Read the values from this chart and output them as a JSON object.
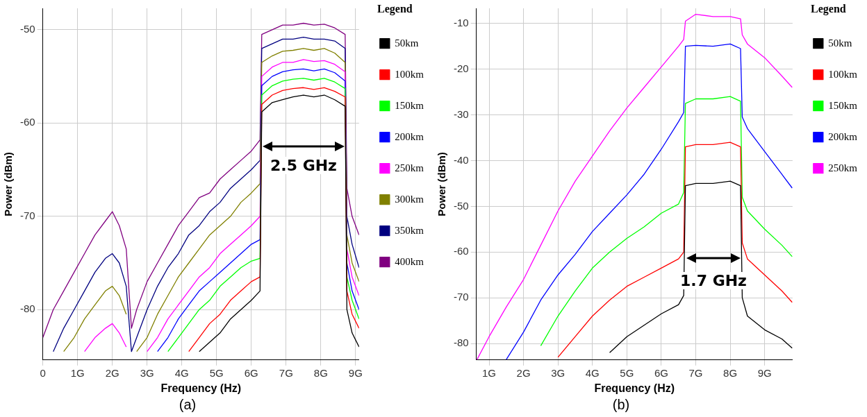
{
  "chart_data": [
    {
      "type": "line",
      "xlabel": "Frequency (Hz)",
      "ylabel": "Power (dBm)",
      "legend_title": "Legend",
      "legend": "right",
      "grid": true,
      "marker": "none",
      "line_style": "solid",
      "xlim": [
        0,
        9.1
      ],
      "ylim": [
        -85.4,
        -47.7
      ],
      "xticks": [
        0,
        {
          "value": 1,
          "label": "1G"
        },
        {
          "value": 2,
          "label": "2G"
        },
        {
          "value": 3,
          "label": "3G"
        },
        {
          "value": 4,
          "label": "4G"
        },
        {
          "value": 5,
          "label": "5G"
        },
        {
          "value": 6,
          "label": "6G"
        },
        {
          "value": 7,
          "label": "7G"
        },
        {
          "value": 8,
          "label": "8G"
        },
        {
          "value": 9,
          "label": "9G"
        }
      ],
      "yticks": [
        -80,
        -70,
        -60,
        -50
      ],
      "annotations": [
        "2.5 GHz",
        "(a)"
      ],
      "x": [
        0,
        0.3,
        0.6,
        0.9,
        1.2,
        1.5,
        1.8,
        2,
        2.2,
        2.4,
        2.55,
        2.7,
        3,
        3.3,
        3.6,
        3.9,
        4.2,
        4.5,
        4.8,
        5.1,
        5.4,
        5.7,
        6,
        6.25,
        6.3,
        6.6,
        6.9,
        7.2,
        7.5,
        7.8,
        8.1,
        8.4,
        8.7,
        8.75,
        8.9,
        9.1
      ],
      "series": [
        {
          "name": "50km",
          "color": "#000000",
          "values": [
            null,
            null,
            null,
            null,
            null,
            null,
            null,
            null,
            null,
            null,
            null,
            null,
            null,
            null,
            null,
            null,
            null,
            -84.5,
            -83.5,
            -82.5,
            -81,
            -80,
            -79,
            -78,
            -58.8,
            -57.8,
            -57.5,
            -57.2,
            -57,
            -57.2,
            -57,
            -57.5,
            -58.2,
            -80,
            -82.5,
            -84
          ]
        },
        {
          "name": "100km",
          "color": "#ff0000",
          "values": [
            null,
            null,
            null,
            null,
            null,
            null,
            null,
            null,
            null,
            null,
            null,
            null,
            null,
            null,
            null,
            null,
            -84.5,
            -83,
            -81.5,
            -80.5,
            -79,
            -78,
            -77,
            -76.5,
            -58,
            -57,
            -56.5,
            -56.3,
            -56.2,
            -56.4,
            -56.2,
            -56.6,
            -57.2,
            -78,
            -80.5,
            -82
          ]
        },
        {
          "name": "150km",
          "color": "#00ff00",
          "values": [
            null,
            null,
            null,
            null,
            null,
            null,
            null,
            null,
            null,
            null,
            null,
            null,
            null,
            null,
            -84.5,
            -83,
            -81.5,
            -80,
            -79,
            -77.5,
            -76.5,
            -75.5,
            -74.8,
            -74.5,
            -57,
            -56,
            -55.5,
            -55.3,
            -55.2,
            -55.4,
            -55.2,
            -55.6,
            -56.3,
            -76.5,
            -79,
            -81
          ]
        },
        {
          "name": "200km",
          "color": "#0000ff",
          "values": [
            null,
            null,
            null,
            null,
            null,
            null,
            null,
            null,
            null,
            null,
            null,
            null,
            null,
            -84.5,
            -83,
            -81,
            -79.5,
            -78,
            -77,
            -76,
            -75,
            -74,
            -73,
            -72.5,
            -56,
            -55,
            -54.5,
            -54.3,
            -54.2,
            -54.4,
            -54.2,
            -54.6,
            -55.5,
            -75,
            -78,
            -80
          ]
        },
        {
          "name": "250km",
          "color": "#ff00ff",
          "values": [
            null,
            null,
            null,
            null,
            -84.5,
            -83,
            -82,
            -81.5,
            -82.5,
            -84,
            null,
            null,
            -84.5,
            -83,
            -81,
            -79.5,
            -78,
            -76.5,
            -75.5,
            -74,
            -73,
            -72,
            -71,
            -70,
            -55,
            -54,
            -53.5,
            -53.5,
            -53.2,
            -53.4,
            -53.3,
            -53.7,
            -54.5,
            -73.5,
            -76.5,
            -78.5
          ]
        },
        {
          "name": "300km",
          "color": "#808000",
          "values": [
            null,
            null,
            -84.5,
            -83,
            -81,
            -79.5,
            -78,
            -77.5,
            -78.5,
            -80.5,
            null,
            -84.5,
            -83,
            -80.5,
            -78.5,
            -76.5,
            -75,
            -73.5,
            -72,
            -71,
            -70,
            -68.5,
            -67.5,
            -66.5,
            -53.5,
            -52.8,
            -52.3,
            -52.2,
            -52,
            -52.2,
            -52,
            -52.5,
            -53.5,
            -72,
            -75,
            -77
          ]
        },
        {
          "name": "350km",
          "color": "#000080",
          "values": [
            null,
            -84.5,
            -82,
            -80,
            -78,
            -76,
            -74.5,
            -74,
            -75,
            -77.5,
            -84.5,
            -83,
            -80,
            -77.5,
            -75.5,
            -74,
            -72,
            -71,
            -69.5,
            -68.5,
            -67,
            -66,
            -65,
            -64,
            -52,
            -51.5,
            -51,
            -51,
            -50.8,
            -51,
            -51,
            -51.2,
            -52,
            -70,
            -73,
            -75.5
          ]
        },
        {
          "name": "400km",
          "color": "#800080",
          "values": [
            -83,
            -80,
            -78,
            -76,
            -74,
            -72,
            -70.5,
            -69.5,
            -71,
            -73.5,
            -82,
            -80,
            -77,
            -75,
            -73,
            -71,
            -69.5,
            -68,
            -67.5,
            -66,
            -65,
            -64,
            -63,
            -61.8,
            -50.5,
            -50,
            -49.5,
            -49.5,
            -49.3,
            -49.5,
            -49.4,
            -49.8,
            -50.5,
            -67,
            -70,
            -72
          ]
        }
      ]
    },
    {
      "type": "line",
      "xlabel": "Frequency (Hz)",
      "ylabel": "Power (dBm)",
      "legend_title": "Legend",
      "legend": "right",
      "grid": true,
      "marker": "none",
      "line_style": "solid",
      "xlim": [
        0.63,
        9.81
      ],
      "ylim": [
        -83.6,
        -6.7
      ],
      "xticks": [
        {
          "value": 1,
          "label": "1G"
        },
        {
          "value": 2,
          "label": "2G"
        },
        {
          "value": 3,
          "label": "3G"
        },
        {
          "value": 4,
          "label": "4G"
        },
        {
          "value": 5,
          "label": "5G"
        },
        {
          "value": 6,
          "label": "6G"
        },
        {
          "value": 7,
          "label": "7G"
        },
        {
          "value": 8,
          "label": "8G"
        },
        {
          "value": 9,
          "label": "9G"
        }
      ],
      "yticks": [
        -80,
        -70,
        -60,
        -50,
        -40,
        -30,
        -20,
        -10
      ],
      "annotations": [
        "1.7 GHz",
        "(b)"
      ],
      "x": [
        0.65,
        1,
        1.5,
        2,
        2.5,
        3,
        3.5,
        4,
        4.5,
        5,
        5.5,
        6,
        6.5,
        6.65,
        6.7,
        7,
        7.5,
        8,
        8.3,
        8.35,
        8.5,
        9,
        9.5,
        9.8
      ],
      "series": [
        {
          "name": "50km",
          "color": "#000000",
          "values": [
            null,
            null,
            null,
            null,
            null,
            null,
            null,
            null,
            -82,
            -78.5,
            -76,
            -73.5,
            -71.5,
            -69.5,
            -45.5,
            -45,
            -45,
            -44.5,
            -45.5,
            -70,
            -74,
            -77,
            -79,
            -81
          ]
        },
        {
          "name": "100km",
          "color": "#ff0000",
          "values": [
            null,
            null,
            null,
            null,
            null,
            -83,
            -78.5,
            -74,
            -70.5,
            -67.5,
            -65.5,
            -63.5,
            -61.5,
            -60,
            -37,
            -36.5,
            -36.5,
            -36,
            -37,
            -58,
            -61.5,
            -65,
            -68.5,
            -71
          ]
        },
        {
          "name": "150km",
          "color": "#00ff00",
          "values": [
            null,
            null,
            null,
            null,
            -80.5,
            -74,
            -68.5,
            -63.5,
            -60,
            -57,
            -54.5,
            -51.5,
            -49.5,
            -47,
            -27.5,
            -26.5,
            -26.5,
            -26,
            -27,
            -48,
            -51,
            -55,
            -58.5,
            -61
          ]
        },
        {
          "name": "200km",
          "color": "#0000ff",
          "values": [
            null,
            null,
            -83.5,
            -77.5,
            -70.5,
            -65,
            -60.5,
            -55.5,
            -51.5,
            -47.5,
            -43,
            -37.5,
            -31.5,
            -29.5,
            -15,
            -14.8,
            -15,
            -14.5,
            -15.5,
            -30.5,
            -33,
            -38,
            -43,
            -46
          ]
        },
        {
          "name": "250km",
          "color": "#ff00ff",
          "values": [
            -83.5,
            -78.5,
            -72,
            -66,
            -58.5,
            -51,
            -44.5,
            -39,
            -33.5,
            -28.5,
            -24,
            -19.5,
            -15,
            -13.5,
            -9.5,
            -8,
            -8.5,
            -8.5,
            -9,
            -12.5,
            -14.5,
            -17.5,
            -21.5,
            -24
          ]
        }
      ]
    }
  ]
}
